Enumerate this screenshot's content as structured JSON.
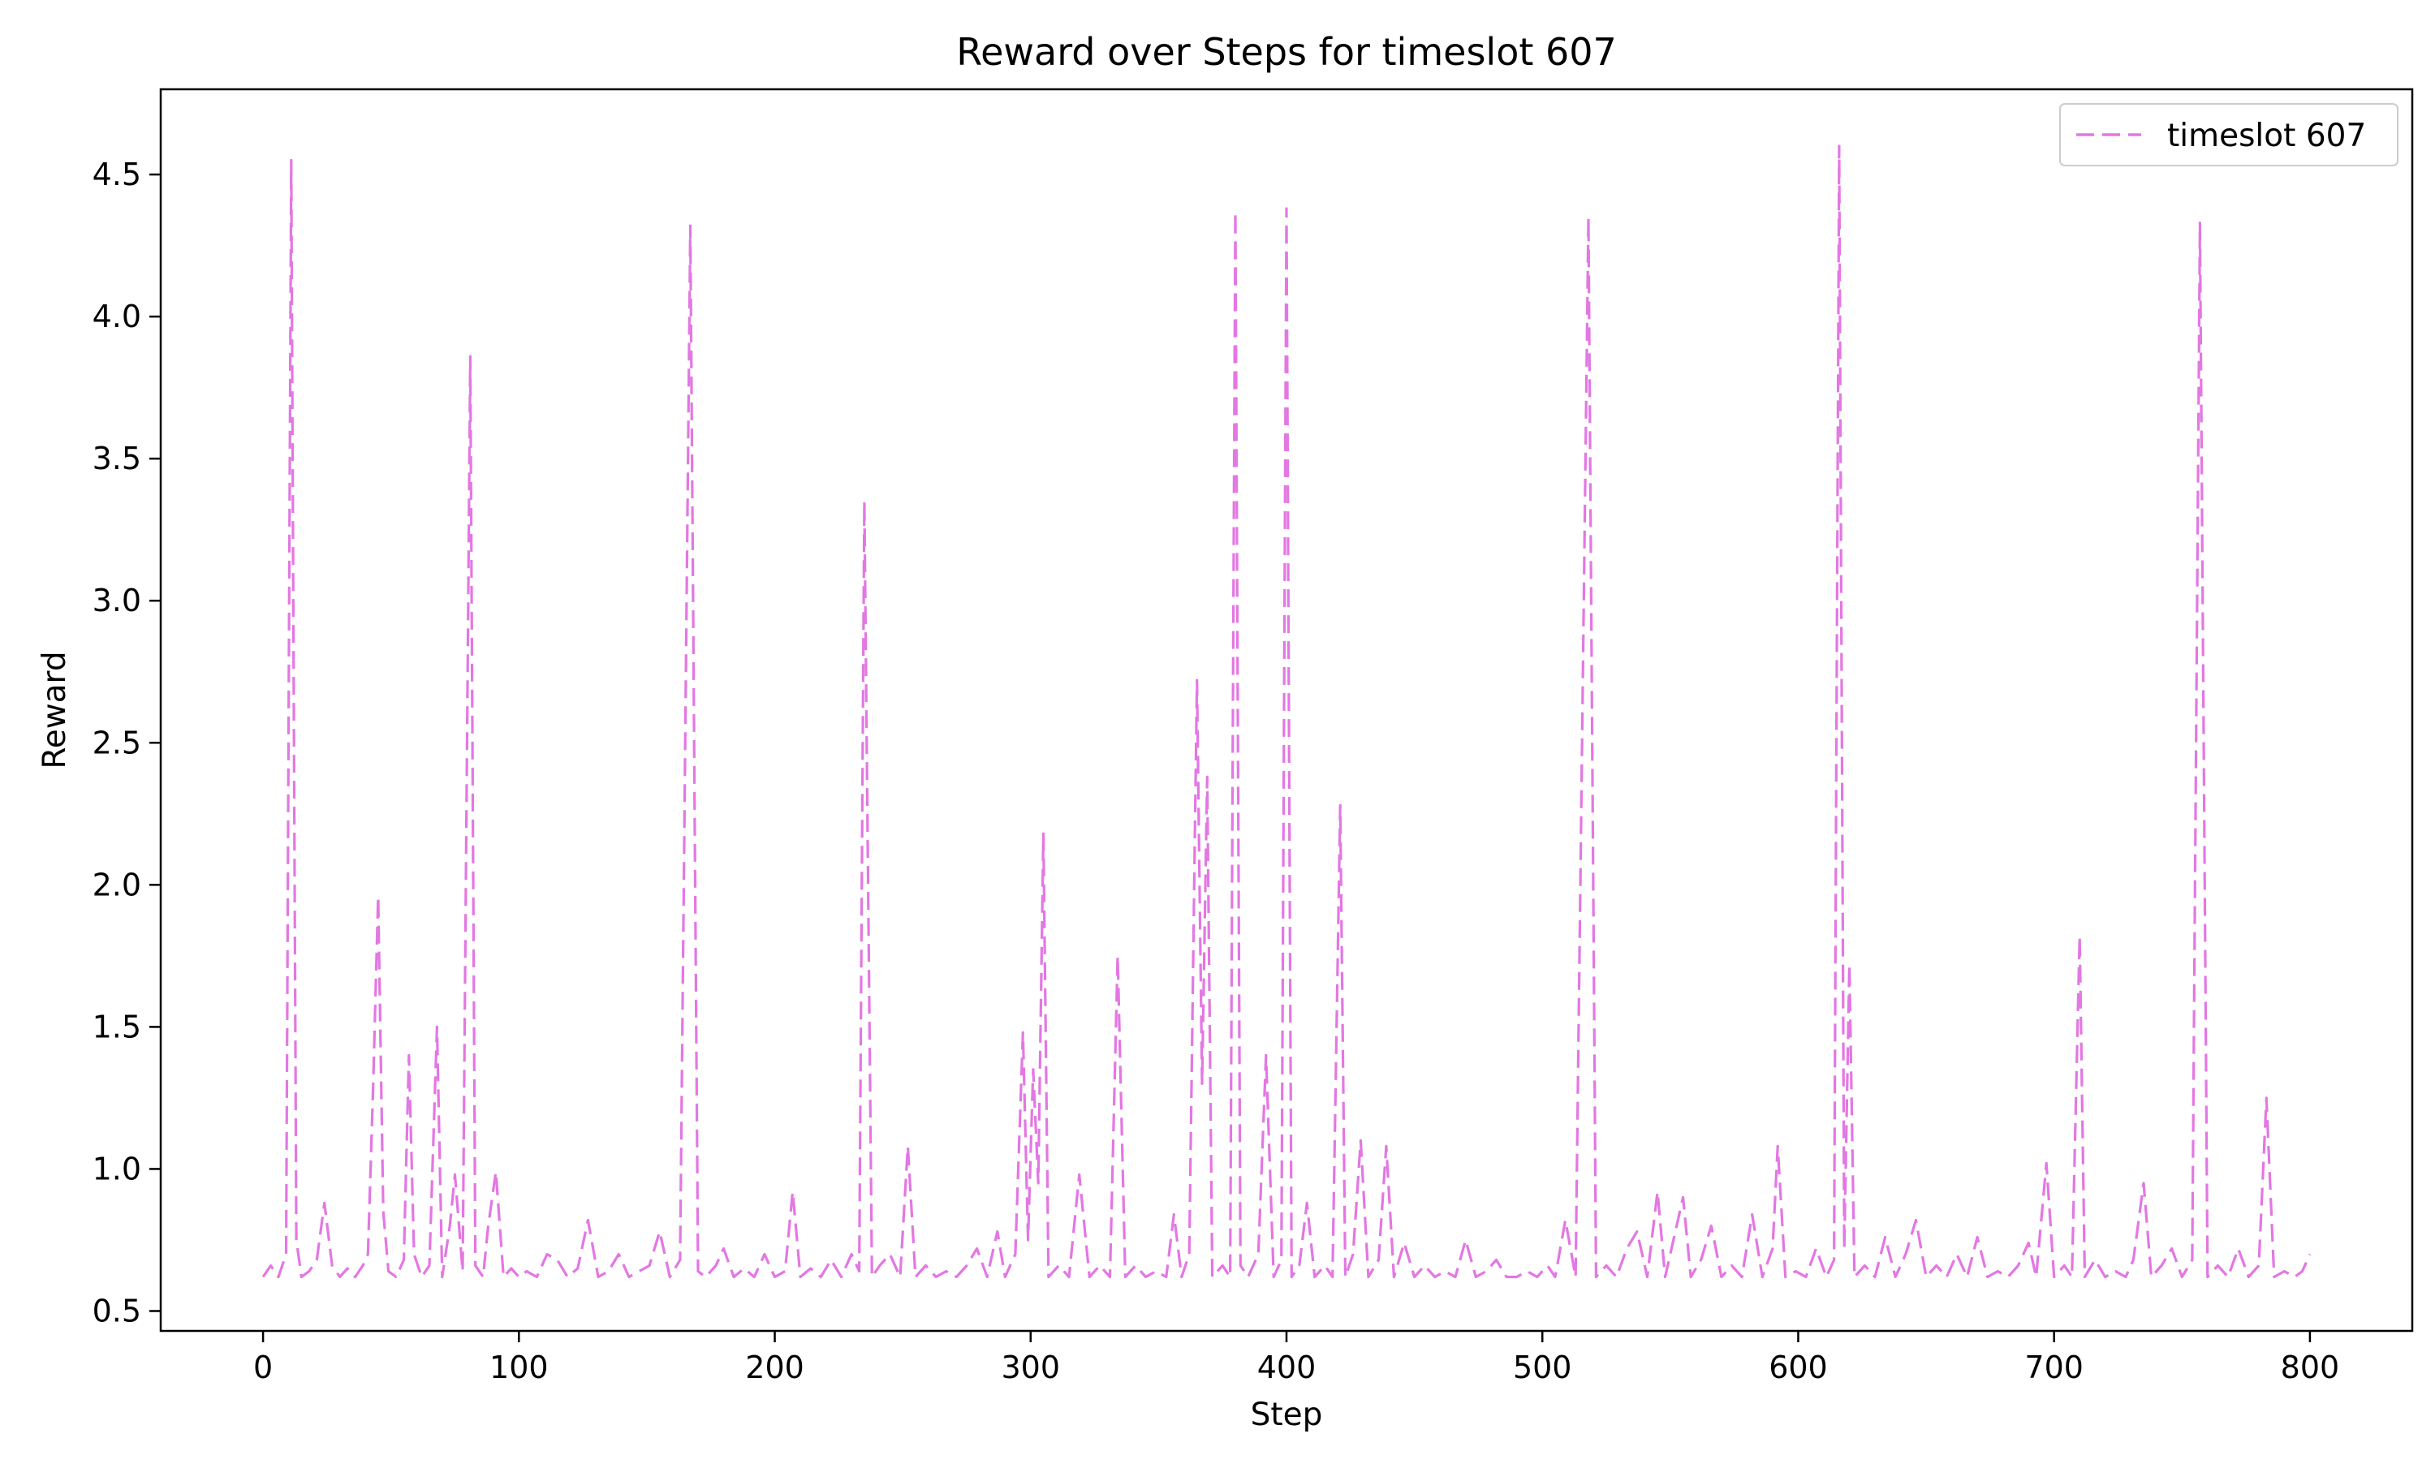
{
  "chart_data": {
    "type": "line",
    "title": "Reward over Steps for timeslot 607",
    "xlabel": "Step",
    "ylabel": "Reward",
    "xlim": [
      -40,
      840
    ],
    "ylim": [
      0.43,
      4.8
    ],
    "x_ticks": [
      0,
      100,
      200,
      300,
      400,
      500,
      600,
      700,
      800
    ],
    "x_tick_labels": [
      "0",
      "100",
      "200",
      "300",
      "400",
      "500",
      "600",
      "700",
      "800"
    ],
    "y_ticks": [
      0.5,
      1.0,
      1.5,
      2.0,
      2.5,
      3.0,
      3.5,
      4.0,
      4.5
    ],
    "y_tick_labels": [
      "0.5",
      "1.0",
      "1.5",
      "2.0",
      "2.5",
      "3.0",
      "3.5",
      "4.0",
      "4.5"
    ],
    "grid": false,
    "legend": {
      "position": "top-right"
    },
    "series": [
      {
        "name": "timeslot 607",
        "color": "#e377e3",
        "line_style": "dashed",
        "points": [
          [
            0,
            0.62
          ],
          [
            3,
            0.66
          ],
          [
            6,
            0.62
          ],
          [
            9,
            0.7
          ],
          [
            11,
            4.55
          ],
          [
            13,
            0.75
          ],
          [
            15,
            0.62
          ],
          [
            18,
            0.64
          ],
          [
            21,
            0.68
          ],
          [
            24,
            0.88
          ],
          [
            27,
            0.66
          ],
          [
            30,
            0.62
          ],
          [
            33,
            0.65
          ],
          [
            36,
            0.62
          ],
          [
            39,
            0.66
          ],
          [
            41,
            0.7
          ],
          [
            43,
            1.28
          ],
          [
            45,
            1.96
          ],
          [
            47,
            0.85
          ],
          [
            49,
            0.64
          ],
          [
            52,
            0.62
          ],
          [
            55,
            0.68
          ],
          [
            57,
            1.4
          ],
          [
            59,
            0.7
          ],
          [
            62,
            0.62
          ],
          [
            65,
            0.66
          ],
          [
            68,
            1.5
          ],
          [
            70,
            0.62
          ],
          [
            73,
            0.8
          ],
          [
            75,
            0.98
          ],
          [
            78,
            0.64
          ],
          [
            81,
            3.86
          ],
          [
            83,
            0.66
          ],
          [
            86,
            0.62
          ],
          [
            88,
            0.8
          ],
          [
            91,
            0.99
          ],
          [
            94,
            0.62
          ],
          [
            97,
            0.65
          ],
          [
            100,
            0.62
          ],
          [
            103,
            0.64
          ],
          [
            107,
            0.62
          ],
          [
            111,
            0.7
          ],
          [
            115,
            0.68
          ],
          [
            119,
            0.62
          ],
          [
            123,
            0.65
          ],
          [
            127,
            0.82
          ],
          [
            131,
            0.62
          ],
          [
            135,
            0.64
          ],
          [
            139,
            0.7
          ],
          [
            143,
            0.62
          ],
          [
            147,
            0.64
          ],
          [
            151,
            0.66
          ],
          [
            155,
            0.78
          ],
          [
            159,
            0.62
          ],
          [
            163,
            0.68
          ],
          [
            167,
            4.32
          ],
          [
            170,
            0.64
          ],
          [
            173,
            0.62
          ],
          [
            177,
            0.66
          ],
          [
            180,
            0.72
          ],
          [
            184,
            0.62
          ],
          [
            188,
            0.65
          ],
          [
            192,
            0.62
          ],
          [
            196,
            0.7
          ],
          [
            200,
            0.62
          ],
          [
            204,
            0.64
          ],
          [
            207,
            0.92
          ],
          [
            210,
            0.62
          ],
          [
            214,
            0.65
          ],
          [
            218,
            0.62
          ],
          [
            222,
            0.68
          ],
          [
            226,
            0.62
          ],
          [
            230,
            0.7
          ],
          [
            233,
            0.64
          ],
          [
            235,
            3.35
          ],
          [
            238,
            0.62
          ],
          [
            241,
            0.66
          ],
          [
            245,
            0.7
          ],
          [
            249,
            0.62
          ],
          [
            252,
            1.08
          ],
          [
            255,
            0.62
          ],
          [
            259,
            0.66
          ],
          [
            263,
            0.62
          ],
          [
            267,
            0.64
          ],
          [
            271,
            0.62
          ],
          [
            275,
            0.66
          ],
          [
            279,
            0.72
          ],
          [
            283,
            0.62
          ],
          [
            287,
            0.78
          ],
          [
            290,
            0.62
          ],
          [
            294,
            0.7
          ],
          [
            297,
            1.48
          ],
          [
            299,
            0.75
          ],
          [
            301,
            1.35
          ],
          [
            303,
            0.95
          ],
          [
            305,
            2.18
          ],
          [
            307,
            0.62
          ],
          [
            311,
            0.66
          ],
          [
            315,
            0.62
          ],
          [
            319,
            0.98
          ],
          [
            323,
            0.62
          ],
          [
            327,
            0.66
          ],
          [
            331,
            0.62
          ],
          [
            334,
            1.75
          ],
          [
            337,
            0.62
          ],
          [
            341,
            0.66
          ],
          [
            345,
            0.62
          ],
          [
            349,
            0.64
          ],
          [
            353,
            0.62
          ],
          [
            356,
            0.84
          ],
          [
            359,
            0.62
          ],
          [
            362,
            0.7
          ],
          [
            365,
            2.72
          ],
          [
            367,
            1.3
          ],
          [
            369,
            2.38
          ],
          [
            371,
            0.62
          ],
          [
            375,
            0.66
          ],
          [
            378,
            0.62
          ],
          [
            380,
            4.37
          ],
          [
            382,
            0.66
          ],
          [
            385,
            0.62
          ],
          [
            389,
            0.7
          ],
          [
            392,
            1.4
          ],
          [
            395,
            0.62
          ],
          [
            398,
            0.68
          ],
          [
            400,
            4.38
          ],
          [
            402,
            0.62
          ],
          [
            405,
            0.66
          ],
          [
            408,
            0.88
          ],
          [
            411,
            0.62
          ],
          [
            415,
            0.66
          ],
          [
            418,
            0.62
          ],
          [
            421,
            2.28
          ],
          [
            423,
            0.62
          ],
          [
            426,
            0.7
          ],
          [
            429,
            1.1
          ],
          [
            432,
            0.62
          ],
          [
            436,
            0.68
          ],
          [
            439,
            1.08
          ],
          [
            442,
            0.62
          ],
          [
            446,
            0.74
          ],
          [
            450,
            0.62
          ],
          [
            454,
            0.66
          ],
          [
            458,
            0.62
          ],
          [
            462,
            0.64
          ],
          [
            466,
            0.62
          ],
          [
            470,
            0.75
          ],
          [
            474,
            0.62
          ],
          [
            478,
            0.64
          ],
          [
            482,
            0.68
          ],
          [
            486,
            0.62
          ],
          [
            490,
            0.62
          ],
          [
            494,
            0.64
          ],
          [
            498,
            0.62
          ],
          [
            502,
            0.66
          ],
          [
            505,
            0.62
          ],
          [
            509,
            0.82
          ],
          [
            513,
            0.62
          ],
          [
            518,
            4.35
          ],
          [
            521,
            0.62
          ],
          [
            525,
            0.66
          ],
          [
            529,
            0.62
          ],
          [
            533,
            0.72
          ],
          [
            537,
            0.78
          ],
          [
            541,
            0.62
          ],
          [
            545,
            0.92
          ],
          [
            548,
            0.62
          ],
          [
            552,
            0.78
          ],
          [
            555,
            0.9
          ],
          [
            558,
            0.62
          ],
          [
            562,
            0.68
          ],
          [
            566,
            0.8
          ],
          [
            570,
            0.62
          ],
          [
            574,
            0.66
          ],
          [
            578,
            0.62
          ],
          [
            582,
            0.84
          ],
          [
            586,
            0.62
          ],
          [
            590,
            0.72
          ],
          [
            592,
            1.08
          ],
          [
            595,
            0.62
          ],
          [
            599,
            0.64
          ],
          [
            603,
            0.62
          ],
          [
            607,
            0.72
          ],
          [
            611,
            0.62
          ],
          [
            614,
            0.68
          ],
          [
            616,
            4.6
          ],
          [
            618,
            0.72
          ],
          [
            620,
            1.72
          ],
          [
            622,
            0.62
          ],
          [
            626,
            0.66
          ],
          [
            630,
            0.62
          ],
          [
            634,
            0.76
          ],
          [
            638,
            0.62
          ],
          [
            642,
            0.7
          ],
          [
            646,
            0.82
          ],
          [
            650,
            0.62
          ],
          [
            654,
            0.66
          ],
          [
            658,
            0.62
          ],
          [
            662,
            0.7
          ],
          [
            666,
            0.62
          ],
          [
            670,
            0.76
          ],
          [
            674,
            0.62
          ],
          [
            678,
            0.64
          ],
          [
            682,
            0.62
          ],
          [
            686,
            0.66
          ],
          [
            690,
            0.74
          ],
          [
            693,
            0.62
          ],
          [
            697,
            1.02
          ],
          [
            700,
            0.62
          ],
          [
            704,
            0.66
          ],
          [
            707,
            0.62
          ],
          [
            710,
            1.82
          ],
          [
            712,
            0.62
          ],
          [
            716,
            0.68
          ],
          [
            720,
            0.62
          ],
          [
            724,
            0.64
          ],
          [
            728,
            0.62
          ],
          [
            731,
            0.68
          ],
          [
            735,
            0.95
          ],
          [
            738,
            0.62
          ],
          [
            742,
            0.66
          ],
          [
            746,
            0.72
          ],
          [
            750,
            0.62
          ],
          [
            754,
            0.68
          ],
          [
            757,
            4.33
          ],
          [
            760,
            0.62
          ],
          [
            764,
            0.66
          ],
          [
            768,
            0.62
          ],
          [
            772,
            0.72
          ],
          [
            776,
            0.62
          ],
          [
            780,
            0.66
          ],
          [
            783,
            1.25
          ],
          [
            786,
            0.62
          ],
          [
            790,
            0.64
          ],
          [
            794,
            0.62
          ],
          [
            797,
            0.64
          ],
          [
            800,
            0.7
          ]
        ]
      }
    ]
  }
}
